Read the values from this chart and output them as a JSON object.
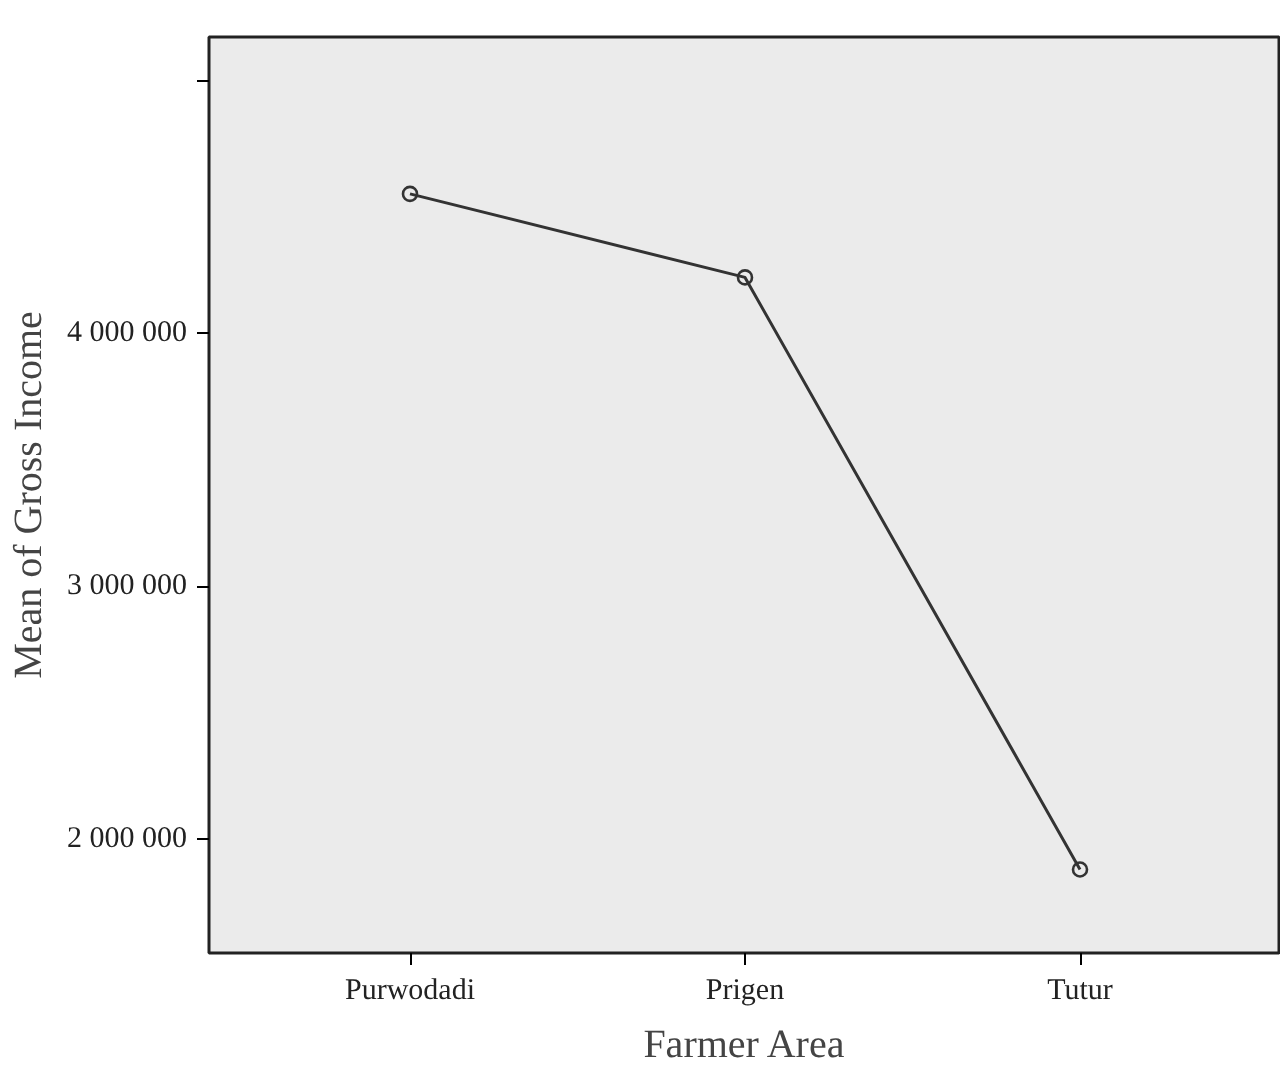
{
  "chart_data": {
    "type": "line",
    "xlabel": "Farmer Area",
    "ylabel": "Mean of Gross Income",
    "categories": [
      "Purwodadi",
      "Prigen",
      "Tutur"
    ],
    "series": [
      {
        "color": "#333333",
        "values": [
          4550000,
          4220000,
          1880000
        ]
      }
    ],
    "ylim": [
      1550000,
      5170000
    ],
    "yticks": [
      {
        "value": 2000000,
        "label": "2 000 000"
      },
      {
        "value": 3000000,
        "label": "3 000 000"
      },
      {
        "value": 4000000,
        "label": "4 000 000"
      },
      {
        "value": 5000000,
        "label": null
      }
    ],
    "grid": false,
    "marker": "circle",
    "line_style": "solid"
  }
}
